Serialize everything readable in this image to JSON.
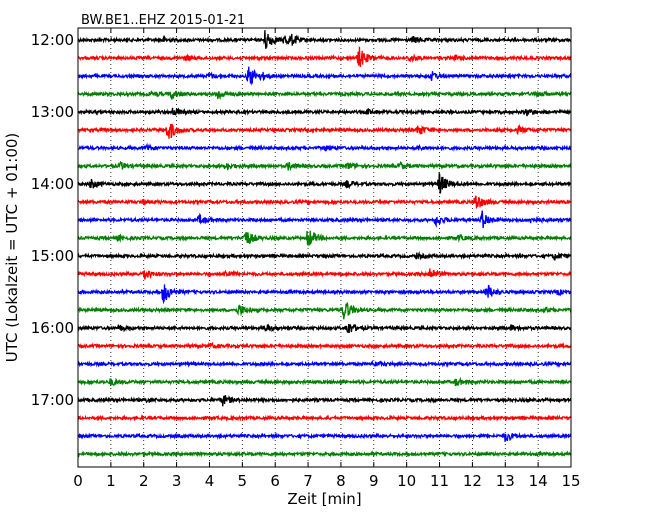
{
  "chart_data": {
    "type": "line",
    "title": "BW.BE1..EHZ 2015-01-21",
    "xlabel": "Zeit  [min]",
    "ylabel": "UTC (Lokalzeit = UTC + 01:00)",
    "xlim": [
      0,
      15
    ],
    "x_ticks": [
      "0",
      "1",
      "2",
      "3",
      "4",
      "5",
      "6",
      "7",
      "8",
      "9",
      "10",
      "11",
      "12",
      "13",
      "14",
      "15"
    ],
    "y_ticks": [
      {
        "label": "12:00",
        "row": 0
      },
      {
        "label": "13:00",
        "row": 4
      },
      {
        "label": "14:00",
        "row": 8
      },
      {
        "label": "15:00",
        "row": 12
      },
      {
        "label": "16:00",
        "row": 16
      },
      {
        "label": "17:00",
        "row": 20
      }
    ],
    "row_minutes": 15,
    "start_time": "12:00",
    "grid": {
      "vertical_dotted": true
    },
    "colors": [
      "#000000",
      "#ff0000",
      "#0000ff",
      "#008000"
    ],
    "traces": [
      {
        "start": "12:00",
        "color": "#000000",
        "events": [
          [
            5.7,
            1.0
          ],
          [
            6.3,
            0.5
          ],
          [
            6.5,
            0.3
          ],
          [
            10.2,
            0.3
          ],
          [
            2.6,
            0.2
          ]
        ]
      },
      {
        "start": "12:15",
        "color": "#ff0000",
        "events": [
          [
            8.55,
            1.0
          ],
          [
            10.1,
            0.3
          ],
          [
            3.3,
            0.2
          ],
          [
            11.5,
            0.2
          ]
        ]
      },
      {
        "start": "12:30",
        "color": "#0000ff",
        "events": [
          [
            5.2,
            1.0
          ],
          [
            10.75,
            0.4
          ],
          [
            5.6,
            0.2
          ],
          [
            4.0,
            0.2
          ]
        ]
      },
      {
        "start": "12:45",
        "color": "#008000",
        "events": [
          [
            2.85,
            0.4
          ],
          [
            4.25,
            0.5
          ],
          [
            14.0,
            0.2
          ],
          [
            2.2,
            0.2
          ]
        ]
      },
      {
        "start": "13:00",
        "color": "#000000",
        "events": [
          [
            2.9,
            0.4
          ],
          [
            13.65,
            0.3
          ],
          [
            8.8,
            0.2
          ]
        ]
      },
      {
        "start": "13:15",
        "color": "#ff0000",
        "events": [
          [
            2.75,
            1.0
          ],
          [
            10.35,
            0.5
          ],
          [
            13.4,
            0.3
          ]
        ]
      },
      {
        "start": "13:30",
        "color": "#0000ff",
        "events": [
          [
            2.1,
            0.2
          ],
          [
            10.3,
            0.2
          ],
          [
            7.5,
            0.2
          ]
        ]
      },
      {
        "start": "13:45",
        "color": "#008000",
        "events": [
          [
            1.3,
            0.3
          ],
          [
            4.5,
            0.3
          ],
          [
            6.4,
            0.3
          ],
          [
            8.2,
            0.3
          ],
          [
            9.8,
            0.3
          ]
        ]
      },
      {
        "start": "14:00",
        "color": "#000000",
        "events": [
          [
            11.0,
            1.0
          ],
          [
            0.4,
            0.4
          ],
          [
            8.2,
            0.3
          ]
        ]
      },
      {
        "start": "14:15",
        "color": "#ff0000",
        "events": [
          [
            12.1,
            0.8
          ],
          [
            2.0,
            0.2
          ]
        ]
      },
      {
        "start": "14:30",
        "color": "#0000ff",
        "events": [
          [
            12.3,
            0.8
          ],
          [
            10.9,
            0.5
          ],
          [
            3.7,
            0.4
          ],
          [
            13.8,
            0.3
          ]
        ]
      },
      {
        "start": "14:45",
        "color": "#008000",
        "events": [
          [
            5.1,
            0.8
          ],
          [
            7.0,
            0.9
          ],
          [
            1.2,
            0.2
          ],
          [
            11.6,
            0.2
          ]
        ]
      },
      {
        "start": "15:00",
        "color": "#000000",
        "events": [
          [
            14.5,
            0.3
          ],
          [
            10.3,
            0.2
          ]
        ]
      },
      {
        "start": "15:15",
        "color": "#ff0000",
        "events": [
          [
            2.0,
            0.5
          ],
          [
            10.7,
            0.6
          ],
          [
            4.5,
            0.3
          ]
        ]
      },
      {
        "start": "15:30",
        "color": "#0000ff",
        "events": [
          [
            2.6,
            1.0
          ],
          [
            12.45,
            0.7
          ],
          [
            14.6,
            0.2
          ]
        ]
      },
      {
        "start": "15:45",
        "color": "#008000",
        "events": [
          [
            8.1,
            1.0
          ],
          [
            4.9,
            0.5
          ],
          [
            14.2,
            0.2
          ]
        ]
      },
      {
        "start": "16:00",
        "color": "#000000",
        "events": [
          [
            8.2,
            0.6
          ],
          [
            5.7,
            0.3
          ],
          [
            1.3,
            0.2
          ],
          [
            13.2,
            0.2
          ]
        ]
      },
      {
        "start": "16:15",
        "color": "#ff0000",
        "events": [
          [
            4.0,
            0.2
          ]
        ]
      },
      {
        "start": "16:30",
        "color": "#0000ff",
        "events": [
          [
            9.0,
            0.2
          ]
        ]
      },
      {
        "start": "16:45",
        "color": "#008000",
        "events": [
          [
            1.0,
            0.3
          ],
          [
            11.5,
            0.3
          ]
        ]
      },
      {
        "start": "17:00",
        "color": "#000000",
        "events": [
          [
            4.4,
            0.5
          ],
          [
            2.1,
            0.2
          ]
        ]
      },
      {
        "start": "17:15",
        "color": "#ff0000",
        "events": []
      },
      {
        "start": "17:30",
        "color": "#0000ff",
        "events": [
          [
            13.0,
            0.5
          ]
        ]
      },
      {
        "start": "17:45",
        "color": "#008000",
        "events": []
      }
    ]
  }
}
